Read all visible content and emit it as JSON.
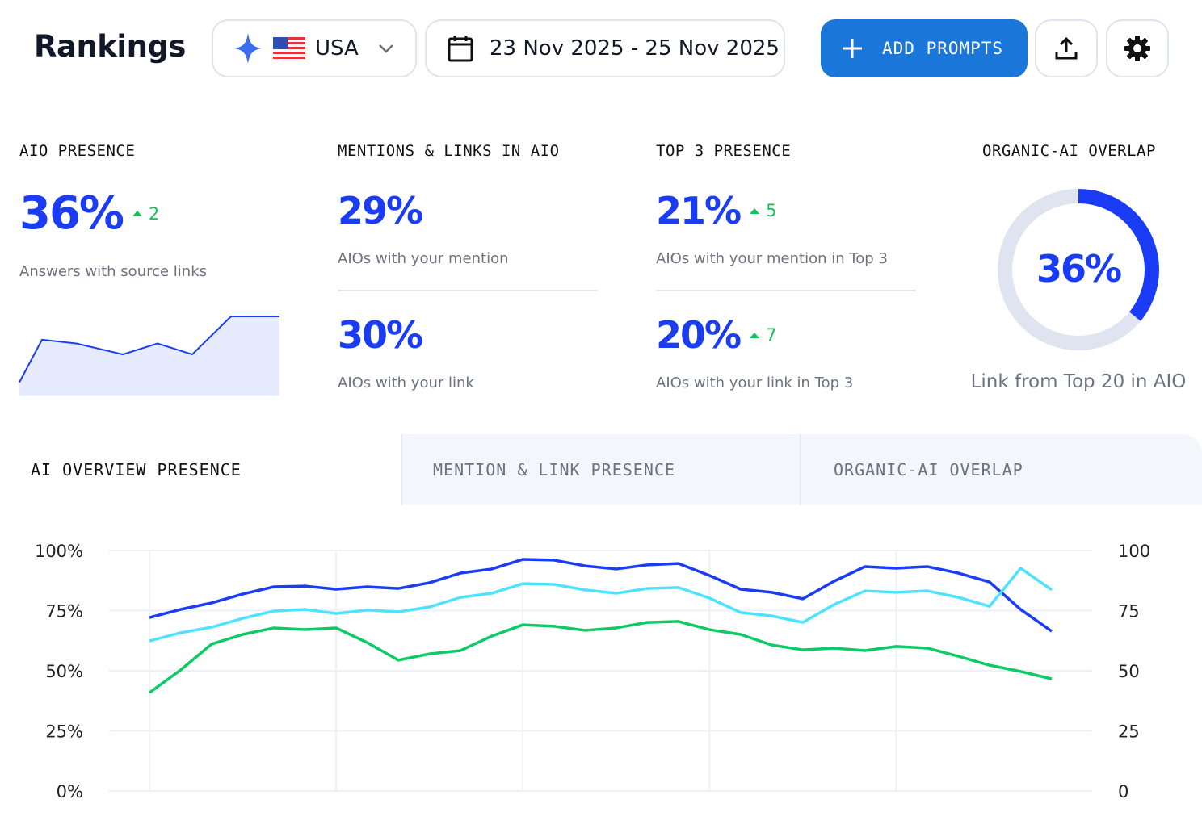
{
  "header": {
    "title": "Rankings",
    "country": "USA",
    "date_range": "23 Nov 2025 - 25 Nov 2025",
    "add_prompts": "ADD PROMPTS",
    "icons": [
      "sparkle-icon",
      "us-flag-icon",
      "chevron-down-icon",
      "calendar-icon",
      "plus-icon",
      "upload-icon",
      "gear-icon"
    ]
  },
  "kpis": {
    "aio": {
      "label": "AIO PRESENCE",
      "value": "36%",
      "delta": "2",
      "caption": "Answers with source links",
      "sparkline": [
        15,
        70,
        65,
        51,
        65,
        51,
        100,
        100
      ]
    },
    "mentions": {
      "label": "MENTIONS & LINKS IN AIO",
      "mention_value": "29%",
      "mention_caption": "AIOs with your mention",
      "link_value": "30%",
      "link_caption": "AIOs with your link"
    },
    "top3": {
      "label": "TOP 3 PRESENCE",
      "mention_value": "21%",
      "mention_delta": "5",
      "mention_caption": "AIOs with your mention in Top 3",
      "link_value": "20%",
      "link_delta": "7",
      "link_caption": "AIOs with your link in Top 3"
    },
    "overlap": {
      "label": "ORGANIC-AI OVERLAP",
      "value": "36%",
      "percent": 36,
      "caption": "Link from Top 20 in AIO"
    }
  },
  "tabs": [
    {
      "label": "AI OVERVIEW PRESENCE",
      "active": true
    },
    {
      "label": "MENTION & LINK PRESENCE",
      "active": false
    },
    {
      "label": "ORGANIC-AI OVERLAP",
      "active": false
    }
  ],
  "colors": {
    "accent": "#1a3cf5",
    "button": "#1b76d9",
    "cyan": "#4de3ff",
    "green": "#0ccb65",
    "up": "#10c25a"
  },
  "chart_data": {
    "type": "line",
    "ylim": [
      0,
      100
    ],
    "y_ticks_left": [
      "100%",
      "75%",
      "50%",
      "25%",
      "0%"
    ],
    "y_ticks_right": [
      "100",
      "75",
      "50",
      "25",
      "0"
    ],
    "grid": true,
    "series": [
      {
        "color": "#1a3cf5",
        "values": [
          72.1,
          75.5,
          78.2,
          81.9,
          84.9,
          85.2,
          83.9,
          84.9,
          84.2,
          86.6,
          90.6,
          92.3,
          96.3,
          96,
          93.6,
          92.3,
          94,
          94.6,
          89.6,
          83.9,
          82.6,
          79.9,
          87.2,
          93.3,
          92.6,
          93.3,
          90.6,
          86.9,
          75.5,
          66.4
        ]
      },
      {
        "color": "#4de3ff",
        "values": [
          62.4,
          65.8,
          68.1,
          71.8,
          74.8,
          75.5,
          73.8,
          75.2,
          74.5,
          76.5,
          80.5,
          82.2,
          86.2,
          85.9,
          83.6,
          82.2,
          84.2,
          84.6,
          80.2,
          74.2,
          72.8,
          70.1,
          77.5,
          83.2,
          82.6,
          83.2,
          80.5,
          76.8,
          92.6,
          83.6
        ]
      },
      {
        "color": "#0ccb65",
        "values": [
          40.9,
          50.3,
          61.1,
          65.1,
          67.8,
          67.1,
          67.8,
          61.7,
          54.4,
          57,
          58.4,
          64.4,
          69.1,
          68.5,
          66.8,
          67.8,
          70.1,
          70.5,
          67.1,
          65.1,
          60.7,
          58.7,
          59.4,
          58.4,
          60.1,
          59.4,
          56,
          52.3,
          49.7,
          46.6
        ]
      }
    ]
  }
}
